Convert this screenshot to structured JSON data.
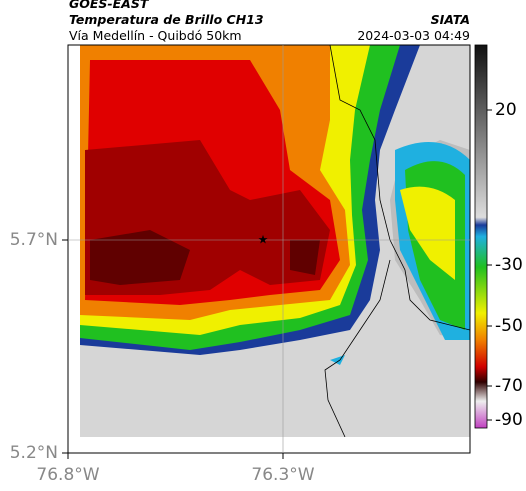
{
  "header": {
    "title": "GOES-EAST",
    "subtitle": "Temperatura de Brillo CH13",
    "location": "Vía Medellín - Quibdó 50km",
    "source": "SIATA",
    "datetime": "2024-03-03 04:49"
  },
  "map": {
    "lat_ticks": [
      {
        "value": 5.7,
        "label": "5.7°N"
      },
      {
        "value": 5.2,
        "label": "5.2°N"
      }
    ],
    "lon_ticks": [
      {
        "value": -76.8,
        "label": "76.8°W"
      },
      {
        "value": -76.3,
        "label": "76.3°W"
      }
    ]
  },
  "colorbar": {
    "ticks": [
      20,
      -30,
      -50,
      -70,
      -90
    ]
  }
}
